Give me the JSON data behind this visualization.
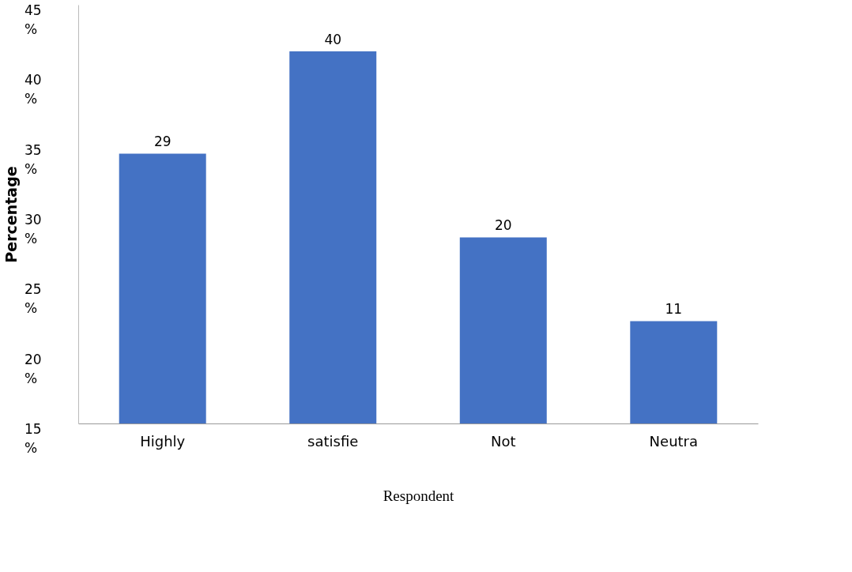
{
  "chart_data": {
    "type": "bar",
    "xlabel": "Respondent",
    "ylabel": "Percentage",
    "categories": [
      "Highly",
      "satisfie",
      "Not",
      "Neutra"
    ],
    "values": [
      29,
      40,
      20,
      11
    ],
    "color": "#4472c4",
    "data_labels": true,
    "ylim": [
      0,
      45
    ],
    "annotations": [
      "15 %",
      "20 %",
      "25 %",
      "30 %",
      "35 %",
      "40 %",
      "45 %"
    ],
    "grid": false
  }
}
